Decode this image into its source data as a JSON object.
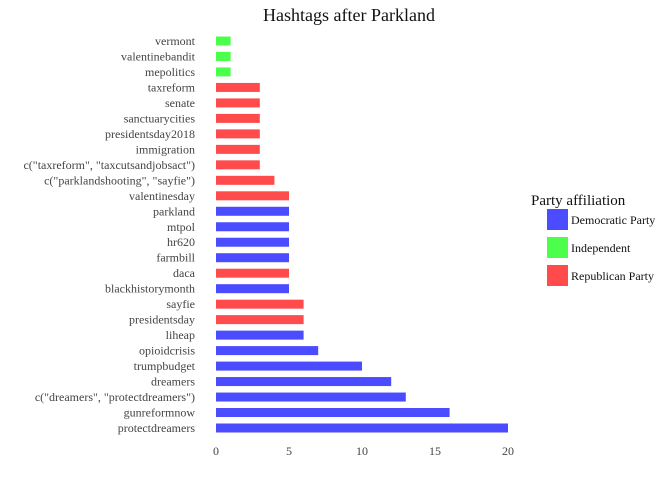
{
  "chart_data": {
    "type": "bar",
    "orientation": "horizontal",
    "title": "Hashtags after Parkland",
    "xlabel": "",
    "ylabel": "",
    "xlim": [
      0,
      20
    ],
    "xticks": [
      0,
      5,
      10,
      15,
      20
    ],
    "grid": false,
    "legend_position": "right",
    "legend": {
      "title": "Party affiliation",
      "entries": [
        {
          "name": "Democratic Party",
          "color": "#4b4bff"
        },
        {
          "name": "Independent",
          "color": "#4bff4b"
        },
        {
          "name": "Republican Party",
          "color": "#ff4b4b"
        }
      ]
    },
    "bars": [
      {
        "category": "vermont",
        "value": 1,
        "party": "Independent"
      },
      {
        "category": "valentinebandit",
        "value": 1,
        "party": "Independent"
      },
      {
        "category": "mepolitics",
        "value": 1,
        "party": "Independent"
      },
      {
        "category": "taxreform",
        "value": 3,
        "party": "Republican Party"
      },
      {
        "category": "senate",
        "value": 3,
        "party": "Republican Party"
      },
      {
        "category": "sanctuarycities",
        "value": 3,
        "party": "Republican Party"
      },
      {
        "category": "presidentsday2018",
        "value": 3,
        "party": "Republican Party"
      },
      {
        "category": "immigration",
        "value": 3,
        "party": "Republican Party"
      },
      {
        "category": "c(\"taxreform\", \"taxcutsandjobsact\")",
        "value": 3,
        "party": "Republican Party"
      },
      {
        "category": "c(\"parklandshooting\", \"sayfie\")",
        "value": 4,
        "party": "Republican Party"
      },
      {
        "category": "valentinesday",
        "value": 5,
        "party": "Republican Party"
      },
      {
        "category": "parkland",
        "value": 5,
        "party": "Democratic Party"
      },
      {
        "category": "mtpol",
        "value": 5,
        "party": "Democratic Party"
      },
      {
        "category": "hr620",
        "value": 5,
        "party": "Democratic Party"
      },
      {
        "category": "farmbill",
        "value": 5,
        "party": "Democratic Party"
      },
      {
        "category": "daca",
        "value": 5,
        "party": "Republican Party"
      },
      {
        "category": "blackhistorymonth",
        "value": 5,
        "party": "Democratic Party"
      },
      {
        "category": "sayfie",
        "value": 6,
        "party": "Republican Party"
      },
      {
        "category": "presidentsday",
        "value": 6,
        "party": "Republican Party"
      },
      {
        "category": "liheap",
        "value": 6,
        "party": "Democratic Party"
      },
      {
        "category": "opioidcrisis",
        "value": 7,
        "party": "Democratic Party"
      },
      {
        "category": "trumpbudget",
        "value": 10,
        "party": "Democratic Party"
      },
      {
        "category": "dreamers",
        "value": 12,
        "party": "Democratic Party"
      },
      {
        "category": "c(\"dreamers\", \"protectdreamers\")",
        "value": 13,
        "party": "Democratic Party"
      },
      {
        "category": "gunreformnow",
        "value": 16,
        "party": "Democratic Party"
      },
      {
        "category": "protectdreamers",
        "value": 20,
        "party": "Democratic Party"
      }
    ]
  }
}
